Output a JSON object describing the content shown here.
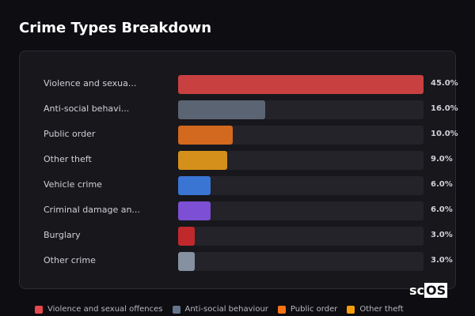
{
  "chart_data": {
    "type": "bar",
    "orientation": "horizontal",
    "title": "Crime Types Breakdown",
    "categories": [
      "Violence and sexua...",
      "Anti-social behavi...",
      "Public order",
      "Other theft",
      "Vehicle crime",
      "Criminal damage an...",
      "Burglary",
      "Other crime"
    ],
    "values": [
      45.0,
      16.0,
      10.0,
      9.0,
      6.0,
      6.0,
      3.0,
      3.0
    ],
    "value_labels": [
      "45.0%",
      "16.0%",
      "10.0%",
      "9.0%",
      "6.0%",
      "6.0%",
      "3.0%",
      "3.0%"
    ],
    "colors": [
      "#c94040",
      "#5b6472",
      "#d2691e",
      "#d4901a",
      "#3a75d4",
      "#7c4fd4",
      "#c0292b",
      "#8590a0"
    ],
    "xlim": [
      0,
      45
    ],
    "legend": [
      {
        "label": "Violence and sexual offences",
        "color": "#e5484d"
      },
      {
        "label": "Anti-social behaviour",
        "color": "#64748b"
      },
      {
        "label": "Public order",
        "color": "#f97316"
      },
      {
        "label": "Other theft",
        "color": "#f59e0b"
      }
    ],
    "legend_position": "bottom"
  },
  "logo": {
    "text_a": "sc",
    "text_b": "OS"
  }
}
